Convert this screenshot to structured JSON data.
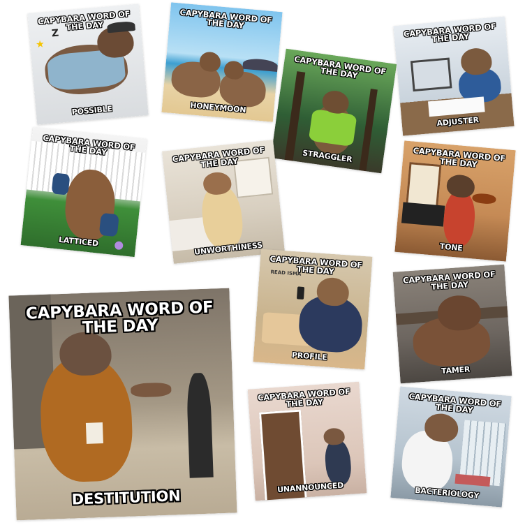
{
  "header_text": "CAPYBARA WORD OF THE DAY",
  "cards": [
    {
      "id": "possible",
      "word": "POSSIBLE"
    },
    {
      "id": "honeymoon",
      "word": "HONEYMOON"
    },
    {
      "id": "straggler",
      "word": "STRAGGLER"
    },
    {
      "id": "adjuster",
      "word": "ADJUSTER"
    },
    {
      "id": "latticed",
      "word": "LATTICED"
    },
    {
      "id": "unworthiness",
      "word": "UNWORTHINESS"
    },
    {
      "id": "tone",
      "word": "TONE"
    },
    {
      "id": "profile",
      "word": "PROFILE"
    },
    {
      "id": "tamer",
      "word": "TAMER"
    },
    {
      "id": "destitution",
      "word": "DESTITUTION"
    },
    {
      "id": "unannounced",
      "word": "UNANNOUNCED"
    },
    {
      "id": "bacteriology",
      "word": "BACTERIOLOGY"
    }
  ],
  "overlay_text": {
    "sleep_z": "Z",
    "profile_sign": "READ ISMA"
  }
}
